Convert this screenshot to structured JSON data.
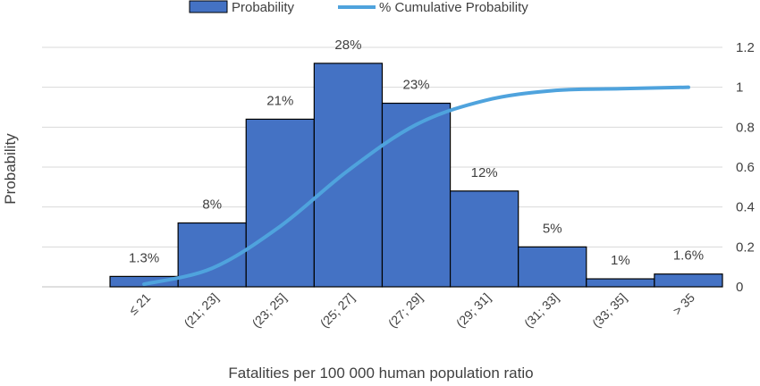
{
  "chart_data": {
    "type": "bar",
    "xlabel": "Fatalities per 100 000 human population ratio",
    "ylabel": "Probability",
    "categories": [
      "≤ 21",
      "(21; 23]",
      "(23; 25]",
      "(25; 27]",
      "(27; 29]",
      "(29; 31]",
      "(31; 33]",
      "(33; 35]",
      "> 35"
    ],
    "series": [
      {
        "name": "Probability",
        "type": "bar",
        "values": [
          0.013,
          0.08,
          0.21,
          0.28,
          0.23,
          0.12,
          0.05,
          0.01,
          0.016
        ],
        "labels": [
          "1.3%",
          "8%",
          "21%",
          "28%",
          "23%",
          "12%",
          "5%",
          "1%",
          "1.6%"
        ],
        "color": "#4472C4"
      },
      {
        "name": "% Cumulative Probability",
        "type": "line",
        "values": [
          0.013,
          0.093,
          0.303,
          0.583,
          0.813,
          0.933,
          0.983,
          0.993,
          1.0
        ],
        "color": "#4FA3DD"
      }
    ],
    "y_left_lim": [
      0,
      0.3
    ],
    "y_right_lim": [
      0,
      1.2
    ],
    "y_right_ticks": [
      "0",
      "0.2",
      "0.4",
      "0.6",
      "0.8",
      "1",
      "1.2"
    ],
    "grid": true,
    "legend_position": "top"
  }
}
